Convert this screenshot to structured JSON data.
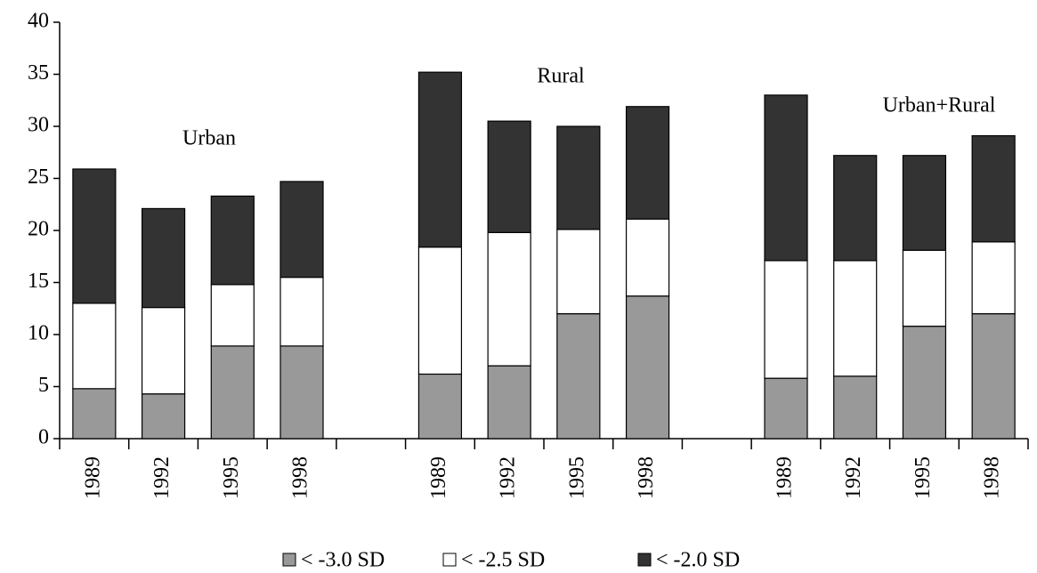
{
  "chart_data": {
    "type": "stacked_bar",
    "categories": [
      "1989",
      "1992",
      "1995",
      "1998",
      null,
      "1989",
      "1992",
      "1995",
      "1998",
      null,
      "1989",
      "1992",
      "1995",
      "1998"
    ],
    "series": [
      {
        "name": "< -3.0 SD",
        "color": "#999999",
        "values": [
          4.8,
          4.3,
          8.9,
          8.9,
          null,
          6.2,
          7.0,
          12.0,
          13.7,
          null,
          5.8,
          6.0,
          10.8,
          12.0
        ]
      },
      {
        "name": "< -2.5 SD",
        "color": "#ffffff",
        "values": [
          8.2,
          8.3,
          5.9,
          6.6,
          null,
          12.2,
          12.8,
          8.1,
          7.4,
          null,
          11.3,
          11.1,
          7.3,
          6.9
        ]
      },
      {
        "name": "< -2.0 SD",
        "color": "#333333",
        "values": [
          12.9,
          9.5,
          8.5,
          9.2,
          null,
          16.8,
          10.7,
          9.9,
          10.8,
          null,
          15.9,
          10.1,
          9.1,
          10.2
        ]
      }
    ],
    "annotations": [
      "Urban",
      "Rural",
      "Urban+Rural"
    ],
    "ylim": [
      0,
      40
    ],
    "yticks": [
      0,
      5,
      10,
      15,
      20,
      25,
      30,
      35,
      40
    ],
    "grid": false,
    "legend": "bottom"
  }
}
